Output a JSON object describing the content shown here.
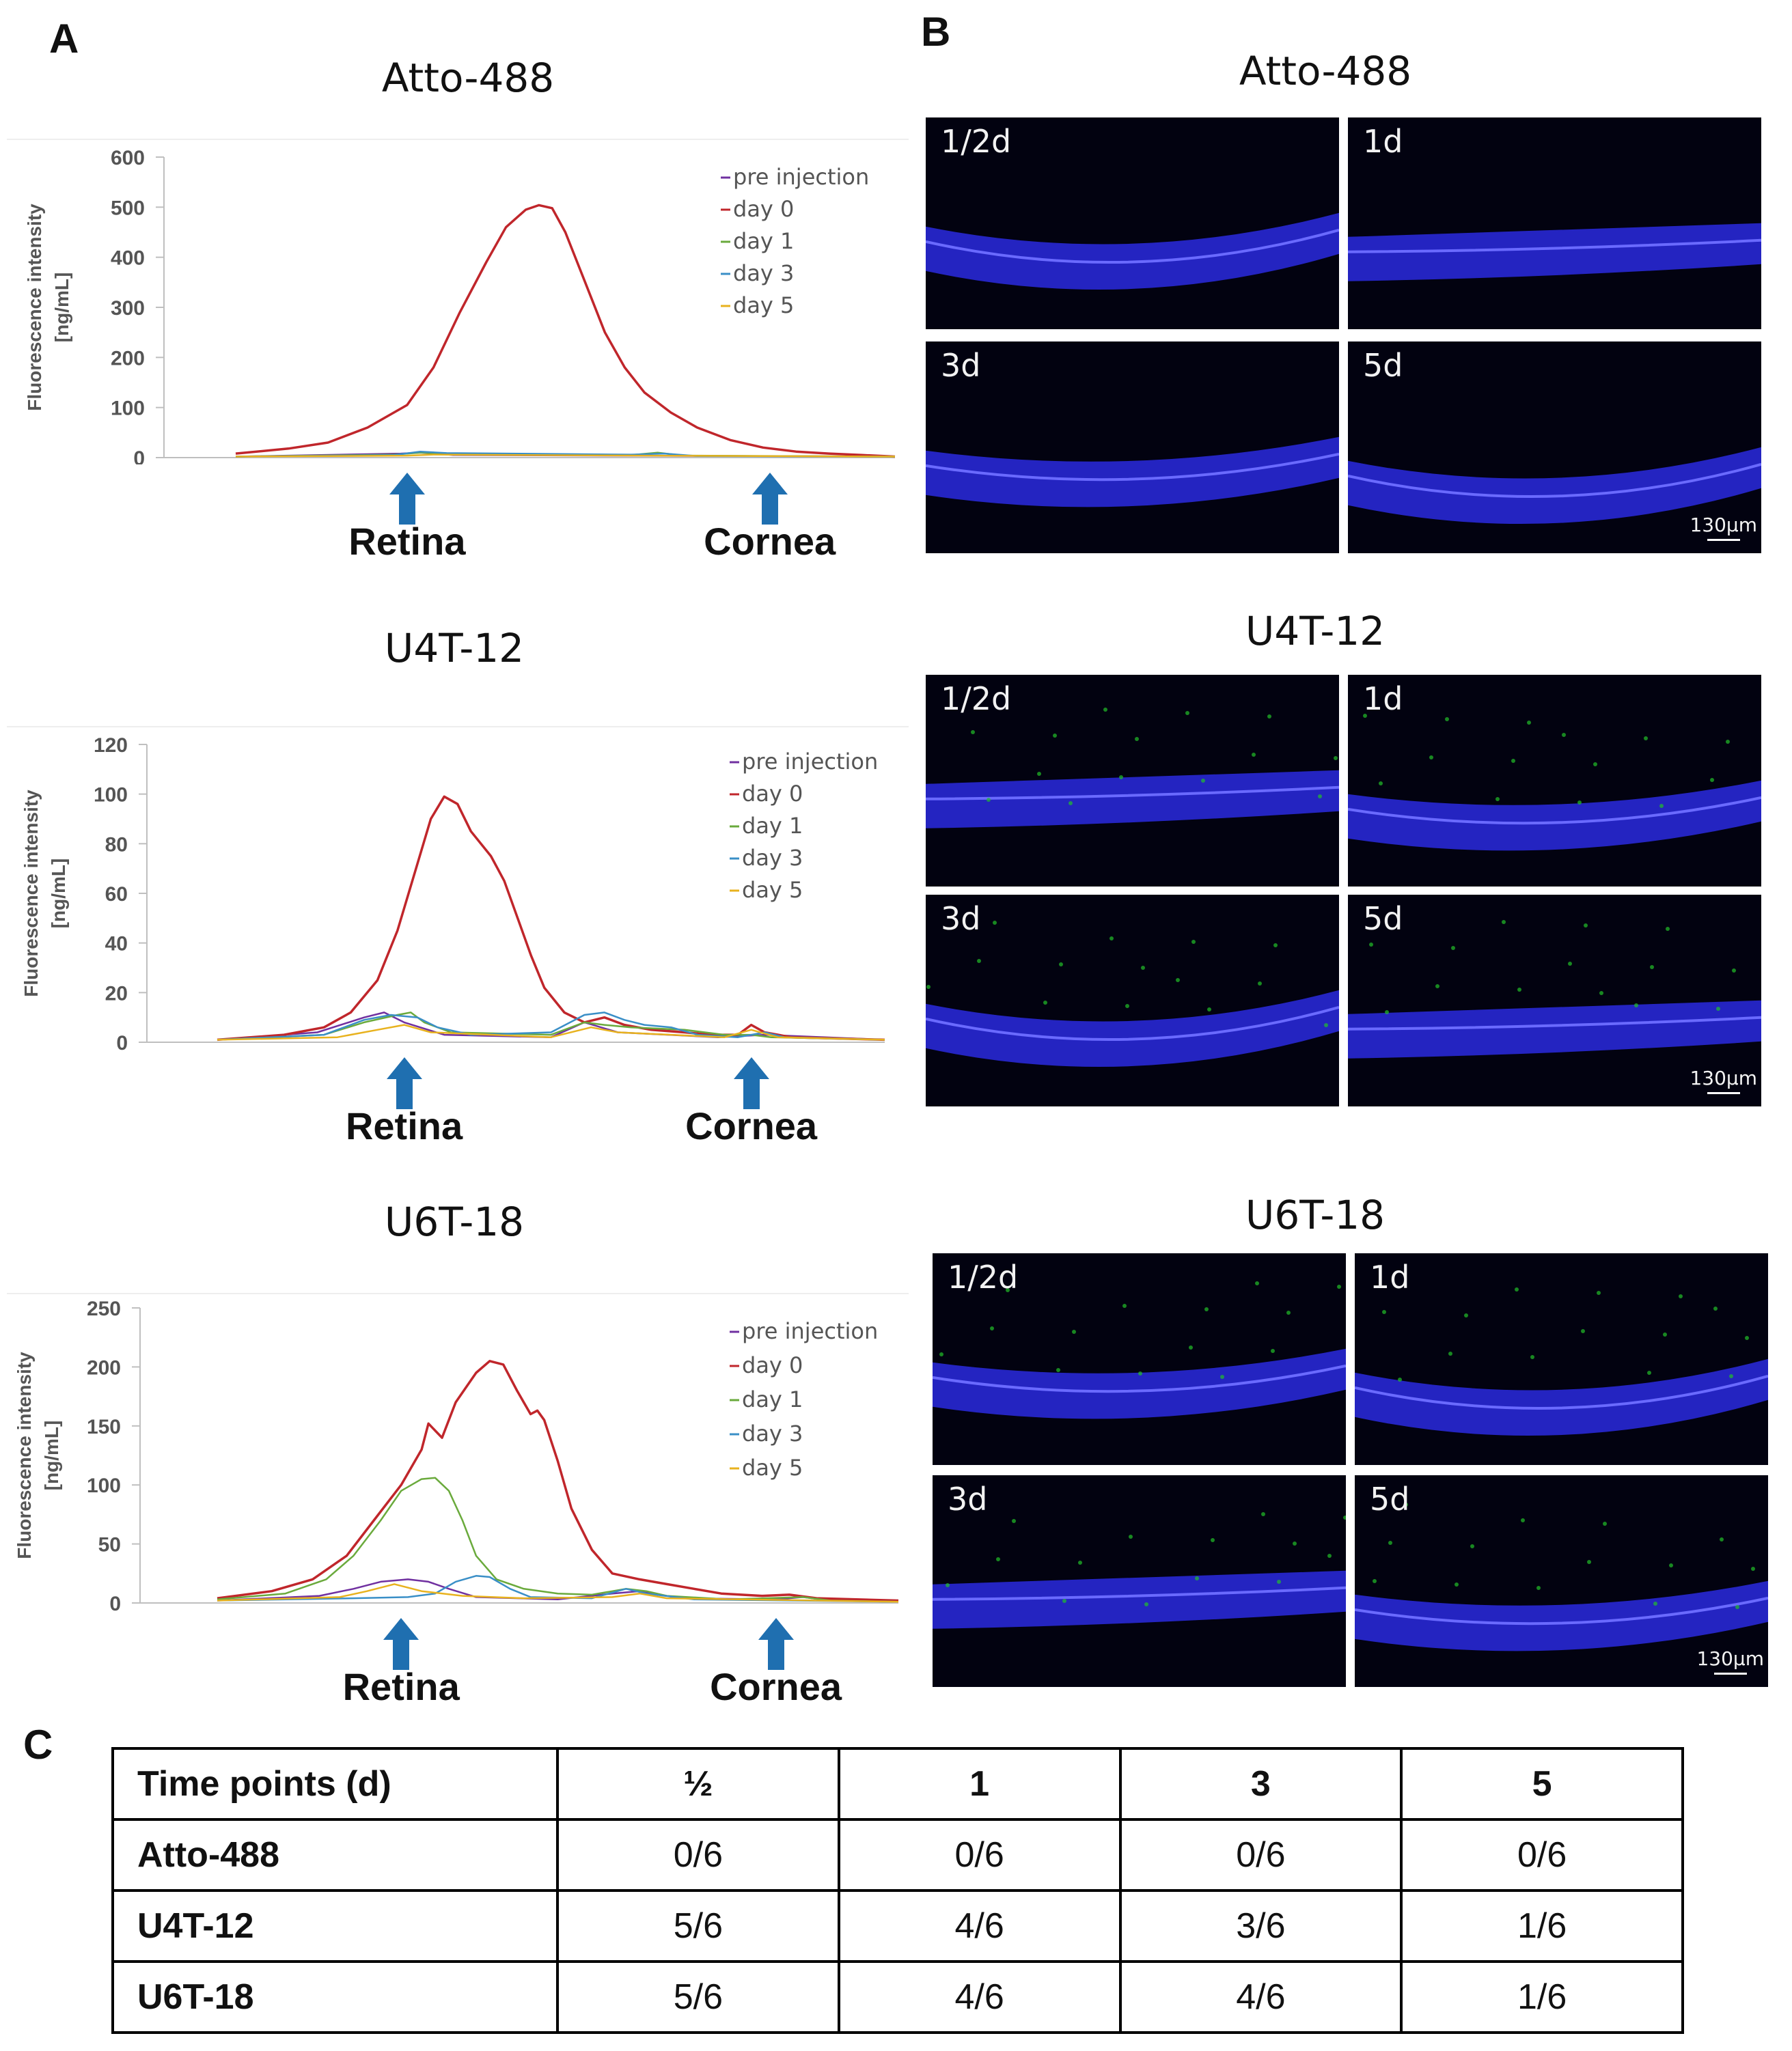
{
  "panels": {
    "a": "A",
    "b": "B",
    "c": "C"
  },
  "colors": {
    "pre": "#7030a0",
    "d0": "#c0262b",
    "d1": "#6aaa3c",
    "d3": "#3a8fc7",
    "d5": "#e8b21e",
    "arrow": "#1f6fb0",
    "nuclei": "#2a2ae0",
    "signal": "#22c02a"
  },
  "arrows": {
    "retina": "Retina",
    "cornea": "Cornea"
  },
  "chart_data": [
    {
      "type": "line",
      "title": "Atto-488",
      "ylabel": "Fluorescence intensity [ng/mL]",
      "ylim": [
        0,
        600
      ],
      "yticks": [
        "600",
        "500",
        "400",
        "300",
        "200",
        "100",
        "0"
      ],
      "xlim": [
        0,
        100
      ],
      "series": [
        {
          "name": "pre injection",
          "key": "pre",
          "points": [
            [
              0,
              2
            ],
            [
              25,
              8
            ],
            [
              28,
              10
            ],
            [
              33,
              5
            ],
            [
              100,
              2
            ]
          ]
        },
        {
          "name": "day 0",
          "key": "d0",
          "points": [
            [
              0,
              8
            ],
            [
              8,
              18
            ],
            [
              14,
              30
            ],
            [
              20,
              60
            ],
            [
              26,
              105
            ],
            [
              30,
              180
            ],
            [
              34,
              290
            ],
            [
              38,
              390
            ],
            [
              41,
              460
            ],
            [
              44,
              495
            ],
            [
              46,
              504
            ],
            [
              48,
              498
            ],
            [
              50,
              450
            ],
            [
              53,
              350
            ],
            [
              56,
              250
            ],
            [
              59,
              180
            ],
            [
              62,
              130
            ],
            [
              66,
              90
            ],
            [
              70,
              60
            ],
            [
              75,
              35
            ],
            [
              80,
              20
            ],
            [
              85,
              12
            ],
            [
              90,
              8
            ],
            [
              95,
              5
            ],
            [
              100,
              2
            ]
          ]
        },
        {
          "name": "day 1",
          "key": "d1",
          "points": [
            [
              0,
              2
            ],
            [
              24,
              6
            ],
            [
              28,
              10
            ],
            [
              32,
              8
            ],
            [
              60,
              5
            ],
            [
              64,
              10
            ],
            [
              68,
              4
            ],
            [
              100,
              2
            ]
          ]
        },
        {
          "name": "day 3",
          "key": "d3",
          "points": [
            [
              0,
              2
            ],
            [
              24,
              5
            ],
            [
              28,
              12
            ],
            [
              32,
              9
            ],
            [
              60,
              6
            ],
            [
              65,
              8
            ],
            [
              70,
              3
            ],
            [
              100,
              2
            ]
          ]
        },
        {
          "name": "day 5",
          "key": "d5",
          "points": [
            [
              0,
              2
            ],
            [
              26,
              4
            ],
            [
              30,
              6
            ],
            [
              62,
              4
            ],
            [
              100,
              2
            ]
          ]
        }
      ],
      "arrow_x": {
        "retina": 26,
        "cornea": 81
      }
    },
    {
      "type": "line",
      "title": "U4T-12",
      "ylabel": "Fluorescence intensity [ng/mL]",
      "ylim": [
        0,
        120
      ],
      "yticks": [
        "120",
        "100",
        "80",
        "60",
        "40",
        "20",
        "0"
      ],
      "xlim": [
        0,
        100
      ],
      "series": [
        {
          "name": "pre injection",
          "key": "pre",
          "points": [
            [
              0,
              1
            ],
            [
              15,
              4
            ],
            [
              22,
              10
            ],
            [
              25,
              12
            ],
            [
              28,
              8
            ],
            [
              34,
              3
            ],
            [
              50,
              2
            ],
            [
              55,
              8
            ],
            [
              60,
              4
            ],
            [
              75,
              2
            ],
            [
              82,
              3
            ],
            [
              100,
              1
            ]
          ]
        },
        {
          "name": "day 0",
          "key": "d0",
          "points": [
            [
              0,
              1
            ],
            [
              10,
              3
            ],
            [
              16,
              6
            ],
            [
              20,
              12
            ],
            [
              24,
              25
            ],
            [
              27,
              45
            ],
            [
              30,
              72
            ],
            [
              32,
              90
            ],
            [
              34,
              99
            ],
            [
              36,
              96
            ],
            [
              38,
              85
            ],
            [
              41,
              75
            ],
            [
              43,
              65
            ],
            [
              45,
              50
            ],
            [
              47,
              35
            ],
            [
              49,
              22
            ],
            [
              52,
              12
            ],
            [
              55,
              8
            ],
            [
              58,
              10
            ],
            [
              61,
              7
            ],
            [
              65,
              5
            ],
            [
              70,
              4
            ],
            [
              74,
              3
            ],
            [
              78,
              3
            ],
            [
              80,
              7
            ],
            [
              82,
              4
            ],
            [
              86,
              2
            ],
            [
              100,
              1
            ]
          ]
        },
        {
          "name": "day 1",
          "key": "d1",
          "points": [
            [
              0,
              1
            ],
            [
              16,
              3
            ],
            [
              22,
              8
            ],
            [
              27,
              11
            ],
            [
              29,
              12
            ],
            [
              31,
              8
            ],
            [
              35,
              4
            ],
            [
              50,
              3
            ],
            [
              55,
              8
            ],
            [
              58,
              7
            ],
            [
              62,
              6
            ],
            [
              70,
              5
            ],
            [
              76,
              3
            ],
            [
              80,
              3
            ],
            [
              83,
              2
            ],
            [
              100,
              1
            ]
          ]
        },
        {
          "name": "day 3",
          "key": "d3",
          "points": [
            [
              0,
              1
            ],
            [
              16,
              3
            ],
            [
              22,
              9
            ],
            [
              26,
              11
            ],
            [
              30,
              10
            ],
            [
              33,
              6
            ],
            [
              38,
              3
            ],
            [
              50,
              4
            ],
            [
              55,
              11
            ],
            [
              58,
              12
            ],
            [
              61,
              9
            ],
            [
              64,
              7
            ],
            [
              68,
              6
            ],
            [
              72,
              3
            ],
            [
              78,
              2
            ],
            [
              82,
              4
            ],
            [
              85,
              2
            ],
            [
              100,
              1
            ]
          ]
        },
        {
          "name": "day 5",
          "key": "d5",
          "points": [
            [
              0,
              1
            ],
            [
              18,
              2
            ],
            [
              24,
              5
            ],
            [
              28,
              7
            ],
            [
              32,
              4
            ],
            [
              50,
              2
            ],
            [
              56,
              6
            ],
            [
              60,
              4
            ],
            [
              76,
              2
            ],
            [
              80,
              5
            ],
            [
              84,
              2
            ],
            [
              100,
              1
            ]
          ]
        }
      ],
      "arrow_x": {
        "retina": 28,
        "cornea": 80
      }
    },
    {
      "type": "line",
      "title": "U6T-18",
      "ylabel": "Fluorescence intensity [ng/mL]",
      "ylim": [
        0,
        250
      ],
      "yticks": [
        "250",
        "200",
        "150",
        "100",
        "50",
        "0"
      ],
      "xlim": [
        0,
        100
      ],
      "series": [
        {
          "name": "pre injection",
          "key": "pre",
          "points": [
            [
              0,
              2
            ],
            [
              15,
              6
            ],
            [
              20,
              12
            ],
            [
              24,
              18
            ],
            [
              28,
              20
            ],
            [
              31,
              18
            ],
            [
              34,
              12
            ],
            [
              38,
              5
            ],
            [
              50,
              3
            ],
            [
              58,
              8
            ],
            [
              62,
              10
            ],
            [
              68,
              4
            ],
            [
              82,
              3
            ],
            [
              86,
              5
            ],
            [
              90,
              2
            ],
            [
              100,
              1
            ]
          ]
        },
        {
          "name": "day 0",
          "key": "d0",
          "points": [
            [
              0,
              4
            ],
            [
              8,
              10
            ],
            [
              14,
              20
            ],
            [
              19,
              40
            ],
            [
              23,
              70
            ],
            [
              27,
              100
            ],
            [
              30,
              130
            ],
            [
              31,
              152
            ],
            [
              33,
              140
            ],
            [
              35,
              170
            ],
            [
              38,
              195
            ],
            [
              40,
              205
            ],
            [
              42,
              202
            ],
            [
              44,
              180
            ],
            [
              46,
              160
            ],
            [
              47,
              163
            ],
            [
              48,
              155
            ],
            [
              50,
              120
            ],
            [
              52,
              80
            ],
            [
              55,
              45
            ],
            [
              58,
              25
            ],
            [
              62,
              20
            ],
            [
              66,
              16
            ],
            [
              70,
              12
            ],
            [
              74,
              8
            ],
            [
              80,
              6
            ],
            [
              84,
              7
            ],
            [
              88,
              4
            ],
            [
              100,
              2
            ]
          ]
        },
        {
          "name": "day 1",
          "key": "d1",
          "points": [
            [
              0,
              3
            ],
            [
              10,
              8
            ],
            [
              16,
              20
            ],
            [
              20,
              40
            ],
            [
              24,
              70
            ],
            [
              27,
              95
            ],
            [
              30,
              105
            ],
            [
              32,
              106
            ],
            [
              34,
              95
            ],
            [
              36,
              70
            ],
            [
              38,
              40
            ],
            [
              41,
              20
            ],
            [
              45,
              12
            ],
            [
              50,
              8
            ],
            [
              55,
              7
            ],
            [
              60,
              12
            ],
            [
              63,
              10
            ],
            [
              66,
              6
            ],
            [
              75,
              3
            ],
            [
              86,
              5
            ],
            [
              90,
              2
            ],
            [
              100,
              1
            ]
          ]
        },
        {
          "name": "day 3",
          "key": "d3",
          "points": [
            [
              0,
              2
            ],
            [
              20,
              4
            ],
            [
              28,
              5
            ],
            [
              32,
              8
            ],
            [
              35,
              18
            ],
            [
              38,
              23
            ],
            [
              40,
              22
            ],
            [
              43,
              12
            ],
            [
              46,
              5
            ],
            [
              55,
              4
            ],
            [
              60,
              12
            ],
            [
              63,
              8
            ],
            [
              70,
              3
            ],
            [
              100,
              1
            ]
          ]
        },
        {
          "name": "day 5",
          "key": "d5",
          "points": [
            [
              0,
              2
            ],
            [
              18,
              5
            ],
            [
              22,
              10
            ],
            [
              26,
              16
            ],
            [
              30,
              10
            ],
            [
              36,
              6
            ],
            [
              45,
              4
            ],
            [
              58,
              5
            ],
            [
              62,
              8
            ],
            [
              66,
              4
            ],
            [
              100,
              1
            ]
          ]
        }
      ],
      "arrow_x": {
        "retina": 27,
        "cornea": 82
      }
    }
  ],
  "micrographs": [
    {
      "title": "Atto-488",
      "tiles": [
        {
          "label": "1/2d"
        },
        {
          "label": "1d"
        },
        {
          "label": "3d"
        },
        {
          "label": "5d",
          "scale": "130µm"
        }
      ]
    },
    {
      "title": "U4T-12",
      "tiles": [
        {
          "label": "1/2d"
        },
        {
          "label": "1d"
        },
        {
          "label": "3d"
        },
        {
          "label": "5d",
          "scale": "130µm"
        }
      ]
    },
    {
      "title": "U6T-18",
      "tiles": [
        {
          "label": "1/2d"
        },
        {
          "label": "1d"
        },
        {
          "label": "3d"
        },
        {
          "label": "5d",
          "scale": "130µm"
        }
      ]
    }
  ],
  "table": {
    "header": [
      "Time points (d)",
      "½",
      "1",
      "3",
      "5"
    ],
    "rows": [
      [
        "Atto-488",
        "0/6",
        "0/6",
        "0/6",
        "0/6"
      ],
      [
        "U4T-12",
        "5/6",
        "4/6",
        "3/6",
        "1/6"
      ],
      [
        "U6T-18",
        "5/6",
        "4/6",
        "4/6",
        "1/6"
      ]
    ]
  }
}
